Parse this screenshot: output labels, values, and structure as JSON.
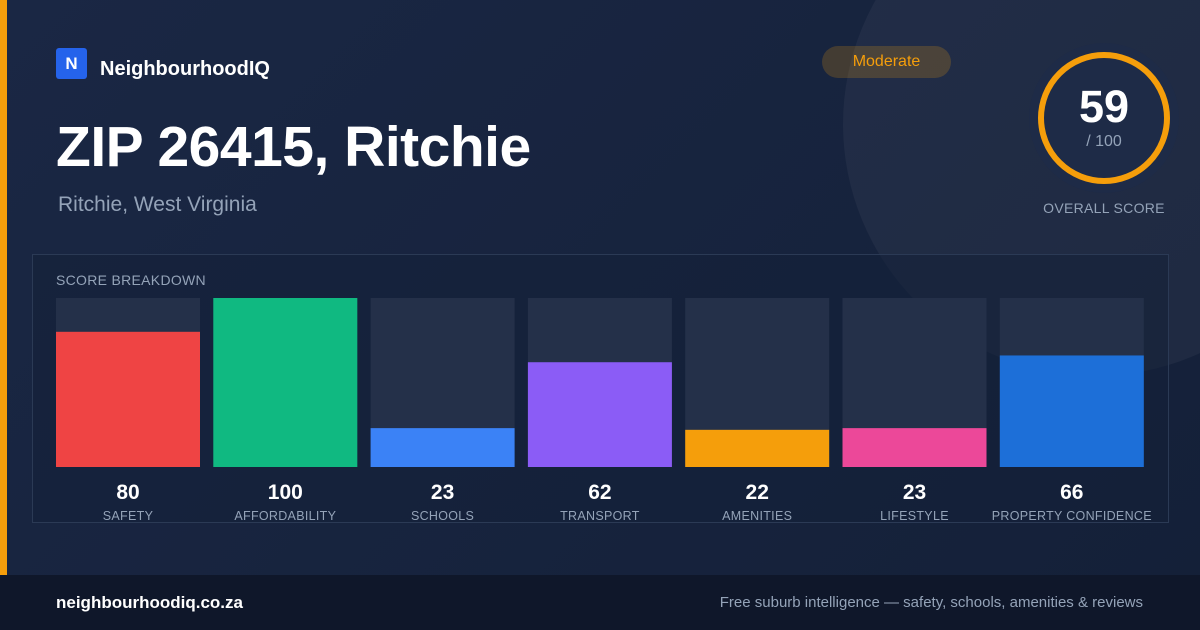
{
  "brand": {
    "logo_letter": "N",
    "name": "NeighbourhoodIQ"
  },
  "badge": "Moderate",
  "title": "ZIP 26415, Ritchie",
  "subtitle": "Ritchie, West Virginia",
  "overall": {
    "value": "59",
    "max": "/ 100",
    "label": "OVERALL SCORE",
    "fraction": 0.59
  },
  "panel": {
    "title": "SCORE BREAKDOWN"
  },
  "colors": {
    "accent": "#f59e0b",
    "track": "#243049",
    "ring_track": "#243049",
    "ring": "#f59e0b"
  },
  "chart_data": {
    "type": "bar",
    "categories": [
      "SAFETY",
      "AFFORDABILITY",
      "SCHOOLS",
      "TRANSPORT",
      "AMENITIES",
      "LIFESTYLE",
      "PROPERTY CONFIDENCE"
    ],
    "values": [
      80,
      100,
      23,
      62,
      22,
      23,
      66
    ],
    "colors": [
      "#ef4444",
      "#10b981",
      "#3b82f6",
      "#8b5cf6",
      "#f59e0b",
      "#ec4899",
      "#1d6fd8"
    ],
    "ylim": [
      0,
      100
    ],
    "grid": false,
    "legend": "none"
  },
  "footer": {
    "url": "neighbourhoodiq.co.za",
    "tagline": "Free suburb intelligence — safety, schools, amenities & reviews"
  }
}
